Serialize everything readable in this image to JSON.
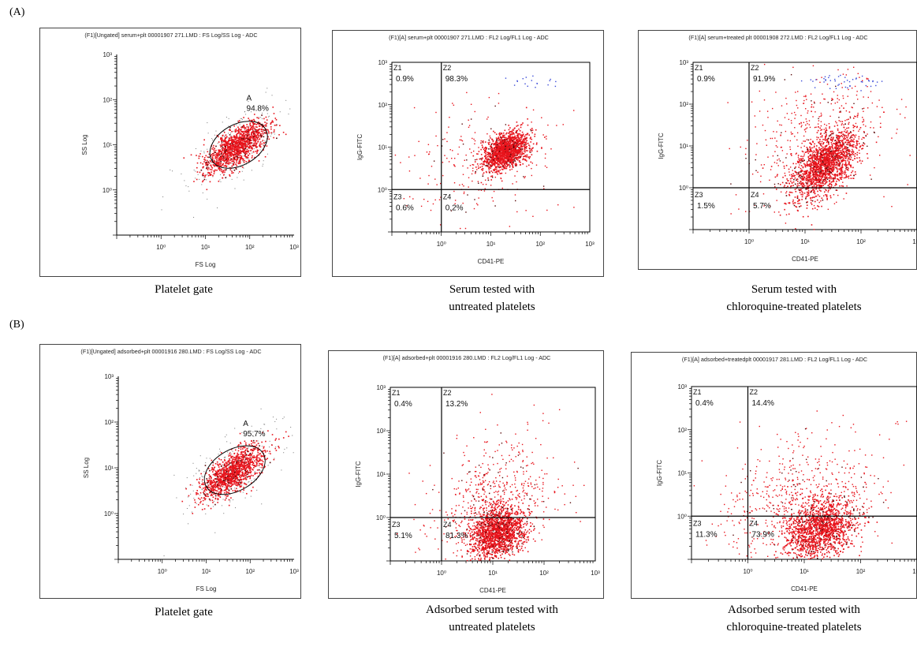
{
  "sections": [
    {
      "label": "(A)"
    },
    {
      "label": "(B)"
    }
  ],
  "colors": {
    "dot": "#e8141c",
    "dot_dark": "#5a0a0a",
    "dot_blue": "#3b4bd8",
    "frame": "#444444",
    "line": "#000000"
  },
  "panels": [
    {
      "header": "(F1)[Ungated] serum+plt 00001907 271.LMD : FS Log/SS Log - ADC",
      "caption": [
        "Platelet gate"
      ]
    },
    {
      "header": "(F1)[A] serum+plt 00001907 271.LMD : FL2 Log/FL1 Log - ADC",
      "caption": [
        "Serum tested with",
        "untreated platelets"
      ]
    },
    {
      "header": "(F1)[A] serum+treated plt 00001908 272.LMD : FL2 Log/FL1 Log - ADC",
      "caption": [
        "Serum tested with",
        "chloroquine-treated platelets"
      ]
    },
    {
      "header": "(F1)[Ungated] adsorbed+plt 00001916 280.LMD : FS Log/SS Log - ADC",
      "caption": [
        "Platelet gate"
      ]
    },
    {
      "header": "(F1)[A] adsorbed+plt 00001916 280.LMD : FL2 Log/FL1 Log - ADC",
      "caption": [
        "Adsorbed serum tested with",
        "untreated platelets"
      ]
    },
    {
      "header": "(F1)[A] adsorbed+treatedplt 00001917 281.LMD : FL2 Log/FL1 Log - ADC",
      "caption": [
        "Adsorbed serum tested with",
        "chloroquine-treated platelets"
      ]
    }
  ],
  "chart_data": [
    {
      "type": "scatter",
      "subtype": "gate",
      "xlabel": "FS Log",
      "ylabel": "SS Log",
      "xlim_log10": [
        -1,
        3
      ],
      "ylim_log10": [
        -1,
        3
      ],
      "x_ticks": [
        "10⁰",
        "10¹",
        "10²",
        "10³"
      ],
      "y_ticks": [
        "10⁰",
        "10¹",
        "10²",
        "10³"
      ],
      "gate": {
        "label": "A",
        "percent": "94.8%",
        "center_log10": [
          1.75,
          1.0
        ],
        "rx_log10": 0.7,
        "ry_log10": 0.45,
        "angle_deg": 30
      },
      "cloud": {
        "n": 1300,
        "center_log10": [
          1.7,
          0.95
        ],
        "sd_log10": [
          0.35,
          0.28
        ],
        "corr": 0.7
      }
    },
    {
      "type": "scatter",
      "subtype": "quadrant",
      "xlabel": "CD41-PE",
      "ylabel": "IgG-FITC",
      "xlim_log10": [
        -1,
        3
      ],
      "ylim_log10": [
        -1,
        3
      ],
      "x_ticks": [
        "10⁰",
        "10¹",
        "10²",
        "10³"
      ],
      "y_ticks": [
        "10⁰",
        "10¹",
        "10²",
        "10³"
      ],
      "cut_log10": [
        0,
        0
      ],
      "quadrants": [
        {
          "id": "Z1",
          "percent": "0.9%"
        },
        {
          "id": "Z2",
          "percent": "98.3%"
        },
        {
          "id": "Z3",
          "percent": "0.6%"
        },
        {
          "id": "Z4",
          "percent": "0.2%"
        }
      ],
      "cloud": {
        "n": 1500,
        "center_log10": [
          1.3,
          0.9
        ],
        "sd_log10": [
          0.22,
          0.22
        ],
        "corr": 0.4
      },
      "spread": {
        "n": 260,
        "center_log10": [
          0.8,
          0.6
        ],
        "sd_log10": [
          0.8,
          0.7
        ]
      },
      "blue": {
        "n": 18,
        "center_log10": [
          1.9,
          2.5
        ],
        "sd_log10": [
          0.3,
          0.1
        ]
      }
    },
    {
      "type": "scatter",
      "subtype": "quadrant",
      "xlabel": "CD41-PE",
      "ylabel": "IgG-FITC",
      "xlim_log10": [
        -1,
        3
      ],
      "ylim_log10": [
        -1,
        3
      ],
      "x_ticks": [
        "10⁰",
        "10¹",
        "10²",
        "10³"
      ],
      "y_ticks": [
        "10⁰",
        "10¹",
        "10²",
        "10³"
      ],
      "cut_log10": [
        0,
        0
      ],
      "quadrants": [
        {
          "id": "Z1",
          "percent": "0.9%"
        },
        {
          "id": "Z2",
          "percent": "91.9%"
        },
        {
          "id": "Z3",
          "percent": "1.5%"
        },
        {
          "id": "Z4",
          "percent": "5.7%"
        }
      ],
      "cloud": {
        "n": 1700,
        "center_log10": [
          1.35,
          0.55
        ],
        "sd_log10": [
          0.28,
          0.4
        ],
        "corr": 0.55
      },
      "spread": {
        "n": 500,
        "center_log10": [
          1.2,
          1.2
        ],
        "sd_log10": [
          0.6,
          0.8
        ]
      },
      "blue": {
        "n": 45,
        "center_log10": [
          1.7,
          2.55
        ],
        "sd_log10": [
          0.35,
          0.1
        ]
      }
    },
    {
      "type": "scatter",
      "subtype": "gate",
      "xlabel": "FS Log",
      "ylabel": "SS Log",
      "xlim_log10": [
        -1,
        3
      ],
      "ylim_log10": [
        -1,
        3
      ],
      "x_ticks": [
        "10⁰",
        "10¹",
        "10²",
        "10³"
      ],
      "y_ticks": [
        "10⁰",
        "10¹",
        "10²",
        "10³"
      ],
      "gate": {
        "label": "A",
        "percent": "95.7%",
        "center_log10": [
          1.65,
          0.95
        ],
        "rx_log10": 0.75,
        "ry_log10": 0.45,
        "angle_deg": 30
      },
      "cloud": {
        "n": 1300,
        "center_log10": [
          1.6,
          0.9
        ],
        "sd_log10": [
          0.35,
          0.28
        ],
        "corr": 0.7
      }
    },
    {
      "type": "scatter",
      "subtype": "quadrant",
      "xlabel": "CD41-PE",
      "ylabel": "IgG-FITC",
      "xlim_log10": [
        -1,
        3
      ],
      "ylim_log10": [
        -1,
        3
      ],
      "x_ticks": [
        "10⁰",
        "10¹",
        "10²",
        "10³"
      ],
      "y_ticks": [
        "10⁰",
        "10¹",
        "10²",
        "10³"
      ],
      "cut_log10": [
        0,
        0
      ],
      "quadrants": [
        {
          "id": "Z1",
          "percent": "0.4%"
        },
        {
          "id": "Z2",
          "percent": "13.2%"
        },
        {
          "id": "Z3",
          "percent": "5.1%"
        },
        {
          "id": "Z4",
          "percent": "81.3%"
        }
      ],
      "cloud": {
        "n": 1500,
        "center_log10": [
          1.1,
          -0.35
        ],
        "sd_log10": [
          0.25,
          0.3
        ],
        "corr": 0.2
      },
      "spread": {
        "n": 650,
        "center_log10": [
          1.0,
          0.3
        ],
        "sd_log10": [
          0.6,
          0.75
        ]
      },
      "blue": {
        "n": 0,
        "center_log10": [
          0,
          0
        ],
        "sd_log10": [
          0,
          0
        ]
      }
    },
    {
      "type": "scatter",
      "subtype": "quadrant",
      "xlabel": "CD41-PE",
      "ylabel": "IgG-FITC",
      "xlim_log10": [
        -1,
        3
      ],
      "ylim_log10": [
        -1,
        3
      ],
      "x_ticks": [
        "10⁰",
        "10¹",
        "10²",
        "10³"
      ],
      "y_ticks": [
        "10⁰",
        "10¹",
        "10²",
        "10³"
      ],
      "cut_log10": [
        0,
        0
      ],
      "quadrants": [
        {
          "id": "Z1",
          "percent": "0.4%"
        },
        {
          "id": "Z2",
          "percent": "14.4%"
        },
        {
          "id": "Z3",
          "percent": "11.3%"
        },
        {
          "id": "Z4",
          "percent": "73.9%"
        }
      ],
      "cloud": {
        "n": 1400,
        "center_log10": [
          1.3,
          -0.3
        ],
        "sd_log10": [
          0.3,
          0.35
        ],
        "corr": 0.3
      },
      "spread": {
        "n": 700,
        "center_log10": [
          0.9,
          0.3
        ],
        "sd_log10": [
          0.7,
          0.75
        ]
      },
      "blue": {
        "n": 0,
        "center_log10": [
          0,
          0
        ],
        "sd_log10": [
          0,
          0
        ]
      }
    }
  ]
}
